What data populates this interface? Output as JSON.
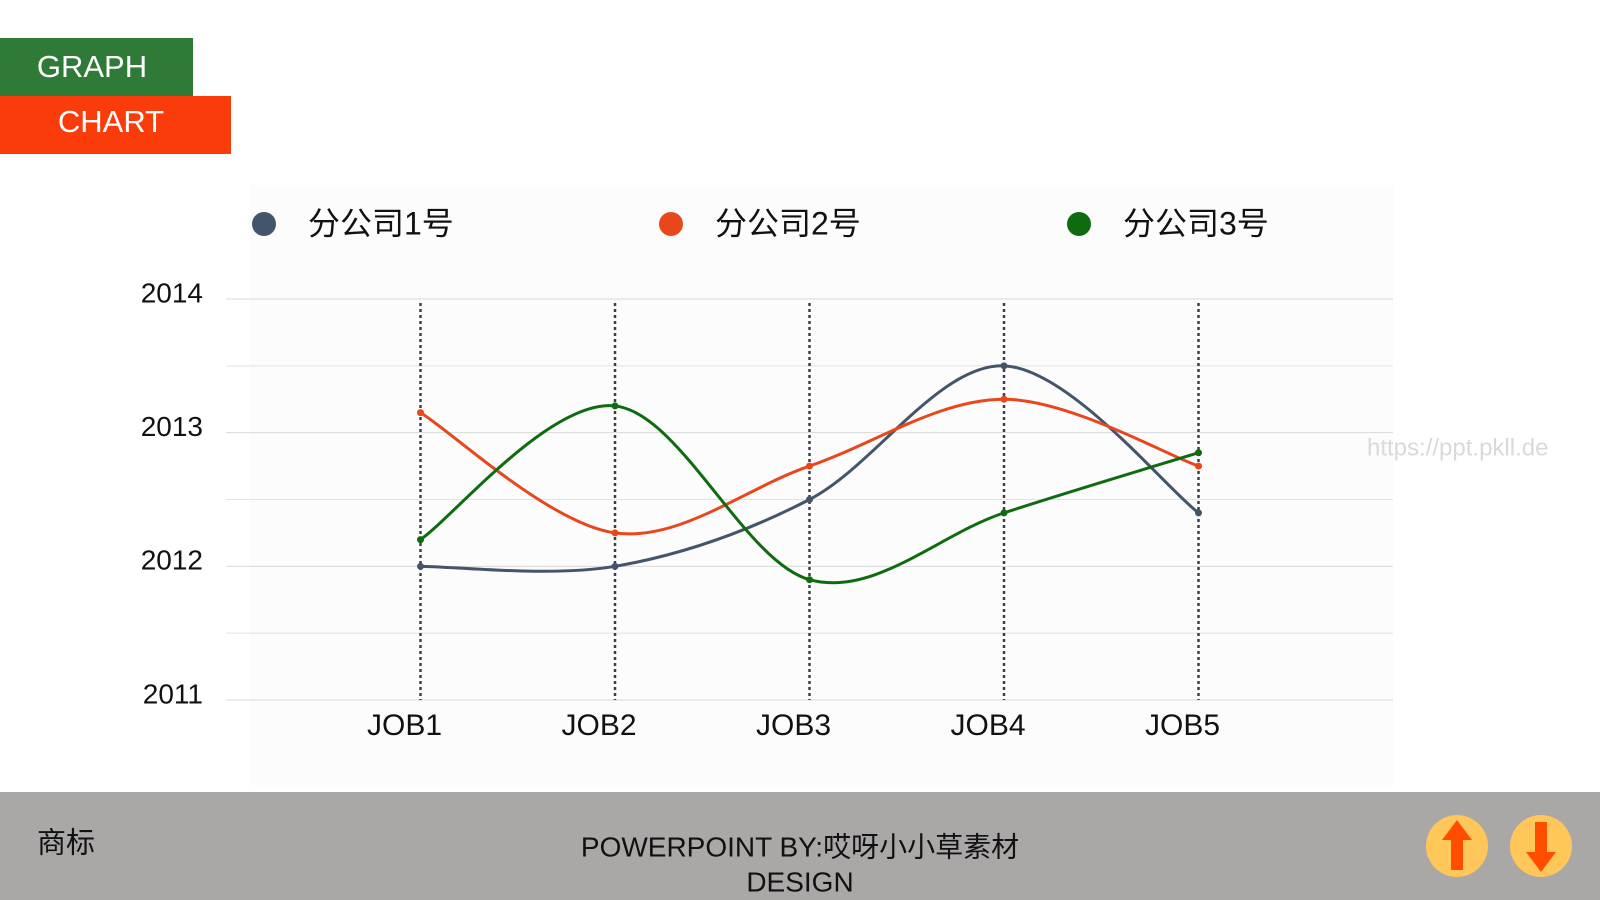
{
  "badge": {
    "top": "GRAPH",
    "bottom": "CHART"
  },
  "watermark": "https://ppt.pkll.de",
  "footer": {
    "logo": "商标",
    "credit": "POWERPOINT BY:哎呀小小草素材",
    "credit2": "DESIGN"
  },
  "chart_data": {
    "type": "line",
    "smooth": true,
    "categories": [
      "JOB1",
      "JOB2",
      "JOB3",
      "JOB4",
      "JOB5"
    ],
    "series": [
      {
        "name": "分公司1号",
        "color": "#44546a",
        "values": [
          2012.0,
          2012.0,
          2012.5,
          2013.5,
          2012.4
        ]
      },
      {
        "name": "分公司2号",
        "color": "#e8461b",
        "values": [
          2013.15,
          2012.25,
          2012.75,
          2013.25,
          2012.75
        ]
      },
      {
        "name": "分公司3号",
        "color": "#0f6b0f",
        "values": [
          2012.2,
          2013.2,
          2011.9,
          2012.4,
          2012.85
        ]
      }
    ],
    "ylim": [
      2011,
      2014
    ],
    "yticks": [
      2011,
      2012,
      2013,
      2014
    ],
    "minor_yticks": [
      2011.5,
      2012.5,
      2013.5
    ],
    "grid": true
  }
}
